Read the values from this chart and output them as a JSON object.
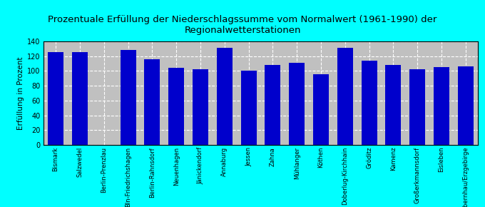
{
  "title": "Prozentuale Erfüllung der Niederschlagssumme vom Normalwert (1961-1990) der\nRegionalwetterstationen",
  "ylabel": "Erfüllung in Prozent",
  "categories": [
    "Bismark",
    "Salzwedel",
    "Berlin-Prenzlau",
    "Bln-Friedrichshagen",
    "Berlin-Rahnsdorf",
    "Neuenhagen",
    "Jänickendorf",
    "Annaburg",
    "Jessen",
    "Zahna",
    "Mühlanger",
    "Köthen",
    "Doberlug-Kirchhain",
    "Gröditz",
    "Kamenz",
    "Großerkmannsdorf",
    "Eisleben",
    "Olbernhau/Erzgebirge"
  ],
  "values": [
    126,
    126,
    0,
    128,
    116,
    104,
    102,
    131,
    100,
    108,
    111,
    96,
    131,
    114,
    108,
    102,
    105,
    106
  ],
  "bar_color": "#0000CC",
  "background_color": "#C0C0C0",
  "outer_background": "#00FFFF",
  "ylim": [
    0,
    140
  ],
  "yticks": [
    0,
    20,
    40,
    60,
    80,
    100,
    120,
    140
  ],
  "legend_label": "Erfüllung",
  "title_fontsize": 9.5,
  "ylabel_fontsize": 7.5
}
